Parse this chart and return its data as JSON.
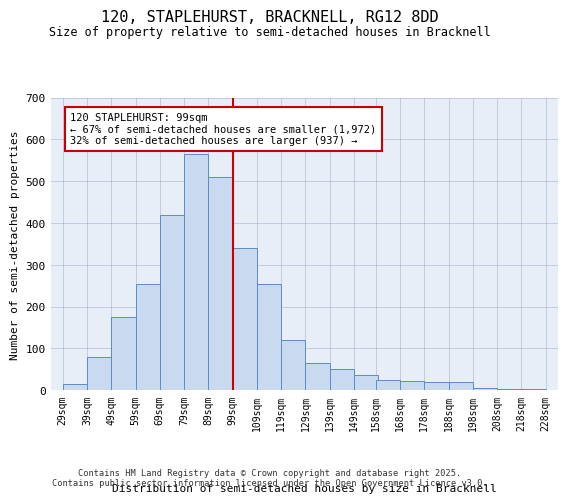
{
  "title_line1": "120, STAPLEHURST, BRACKNELL, RG12 8DD",
  "title_line2": "Size of property relative to semi-detached houses in Bracknell",
  "xlabel": "Distribution of semi-detached houses by size in Bracknell",
  "ylabel": "Number of semi-detached properties",
  "annotation_title": "120 STAPLEHURST: 99sqm",
  "annotation_line2": "← 67% of semi-detached houses are smaller (1,972)",
  "annotation_line3": "32% of semi-detached houses are larger (937) →",
  "footer_line1": "Contains HM Land Registry data © Crown copyright and database right 2025.",
  "footer_line2": "Contains public sector information licensed under the Open Government Licence v3.0.",
  "property_size": 99,
  "bar_color": "#c9d9f0",
  "bar_edge_color": "#5b8bc9",
  "vline_color": "#cc0000",
  "background_color": "#e8eef8",
  "grid_color": "#9999bb",
  "bin_left_edges": [
    29,
    39,
    49,
    59,
    69,
    79,
    89,
    99,
    109,
    119,
    129,
    139,
    149,
    158,
    168,
    178,
    188,
    198,
    208,
    218
  ],
  "bin_labels": [
    "29sqm",
    "39sqm",
    "49sqm",
    "59sqm",
    "69sqm",
    "79sqm",
    "89sqm",
    "99sqm",
    "109sqm",
    "119sqm",
    "129sqm",
    "139sqm",
    "149sqm",
    "158sqm",
    "168sqm",
    "178sqm",
    "188sqm",
    "198sqm",
    "208sqm",
    "218sqm",
    "228sqm"
  ],
  "values": [
    15,
    80,
    175,
    255,
    420,
    565,
    510,
    340,
    255,
    120,
    65,
    50,
    35,
    25,
    22,
    20,
    20,
    5,
    2,
    2
  ],
  "ylim": [
    0,
    700
  ],
  "yticks": [
    0,
    100,
    200,
    300,
    400,
    500,
    600,
    700
  ],
  "xlim_left": 24,
  "xlim_right": 233
}
